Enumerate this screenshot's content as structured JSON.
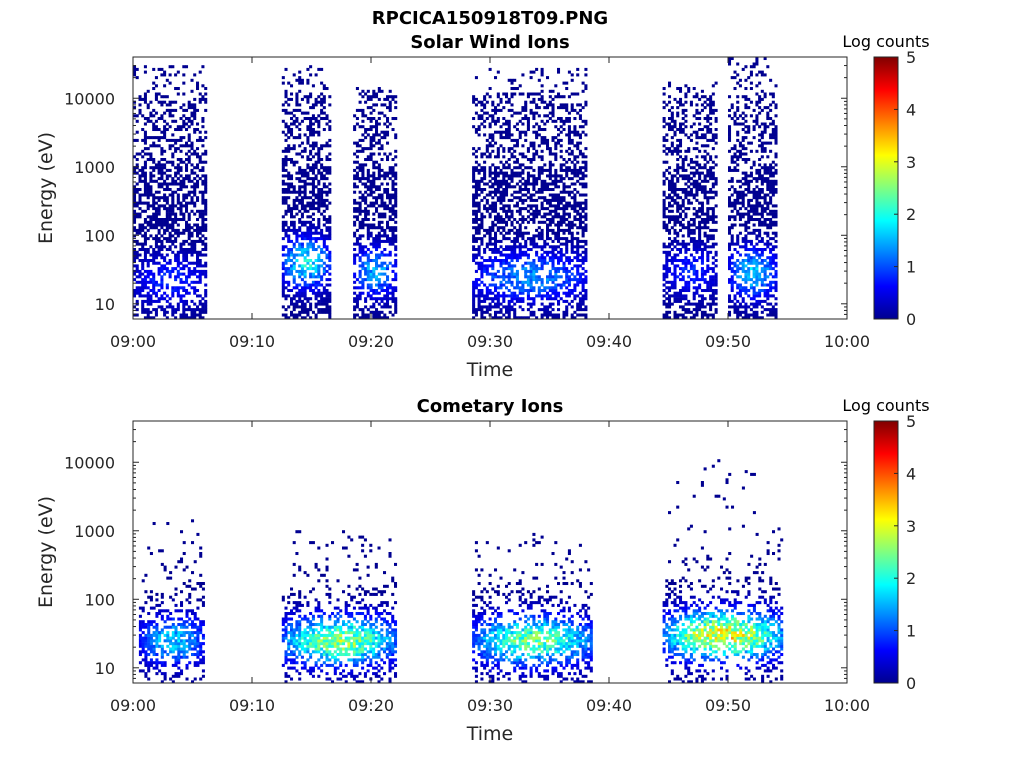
{
  "figure_title": "RPCICA150918T09.PNG",
  "colorbar_colors": [
    "#00008f",
    "#0000ff",
    "#0080ff",
    "#00ffff",
    "#80ff80",
    "#ffff00",
    "#ff8000",
    "#ff0000",
    "#800000"
  ],
  "chart_data": [
    {
      "type": "heatmap",
      "title": "Solar Wind Ions",
      "xlabel": "Time",
      "ylabel": "Energy (eV)",
      "x_tick_labels": [
        "09:00",
        "09:10",
        "09:20",
        "09:30",
        "09:40",
        "09:50",
        "10:00"
      ],
      "xlim_minutes": [
        0,
        60
      ],
      "y_scale": "log",
      "ylim": [
        6,
        40000
      ],
      "y_ticks": [
        10,
        100,
        1000,
        10000
      ],
      "y_tick_labels": [
        "10",
        "100",
        "1000",
        "10000"
      ],
      "colorbar": {
        "label": "Log counts",
        "range": [
          0,
          5
        ],
        "ticks": [
          "0",
          "1",
          "2",
          "3",
          "4",
          "5"
        ]
      },
      "activity_intervals": [
        {
          "start_minute": 0.0,
          "end_minute": 6.0,
          "energy_range_eV": [
            6,
            30000
          ],
          "peak_log_counts": 1.0,
          "peak_energy_eV": 22
        },
        {
          "start_minute": 12.5,
          "end_minute": 16.5,
          "energy_range_eV": [
            6,
            30000
          ],
          "peak_log_counts": 2.3,
          "peak_energy_eV": 40
        },
        {
          "start_minute": 18.5,
          "end_minute": 22.0,
          "energy_range_eV": [
            6,
            15000
          ],
          "peak_log_counts": 1.8,
          "peak_energy_eV": 30
        },
        {
          "start_minute": 28.5,
          "end_minute": 38.0,
          "energy_range_eV": [
            6,
            28000
          ],
          "peak_log_counts": 1.6,
          "peak_energy_eV": 25
        },
        {
          "start_minute": 44.5,
          "end_minute": 49.0,
          "energy_range_eV": [
            6,
            18000
          ],
          "peak_log_counts": 1.0,
          "peak_energy_eV": 30
        },
        {
          "start_minute": 50.0,
          "end_minute": 54.0,
          "energy_range_eV": [
            6,
            40000
          ],
          "peak_log_counts": 2.0,
          "peak_energy_eV": 28
        }
      ]
    },
    {
      "type": "heatmap",
      "title": "Cometary Ions",
      "xlabel": "Time",
      "ylabel": "Energy (eV)",
      "x_tick_labels": [
        "09:00",
        "09:10",
        "09:20",
        "09:30",
        "09:40",
        "09:50",
        "10:00"
      ],
      "xlim_minutes": [
        0,
        60
      ],
      "y_scale": "log",
      "ylim": [
        6,
        40000
      ],
      "y_ticks": [
        10,
        100,
        1000,
        10000
      ],
      "y_tick_labels": [
        "10",
        "100",
        "1000",
        "10000"
      ],
      "colorbar": {
        "label": "Log counts",
        "range": [
          0,
          5
        ],
        "ticks": [
          "0",
          "1",
          "2",
          "3",
          "4",
          "5"
        ]
      },
      "activity_intervals": [
        {
          "start_minute": 0.5,
          "end_minute": 6.0,
          "energy_range_eV": [
            6,
            1500
          ],
          "peak_log_counts": 2.0,
          "peak_energy_eV": 25
        },
        {
          "start_minute": 12.5,
          "end_minute": 22.0,
          "energy_range_eV": [
            6,
            1000
          ],
          "peak_log_counts": 3.2,
          "peak_energy_eV": 25
        },
        {
          "start_minute": 28.5,
          "end_minute": 38.5,
          "energy_range_eV": [
            6,
            900
          ],
          "peak_log_counts": 3.0,
          "peak_energy_eV": 25
        },
        {
          "start_minute": 44.5,
          "end_minute": 54.5,
          "energy_range_eV": [
            6,
            12000
          ],
          "peak_log_counts": 3.8,
          "peak_energy_eV": 30
        }
      ]
    }
  ]
}
